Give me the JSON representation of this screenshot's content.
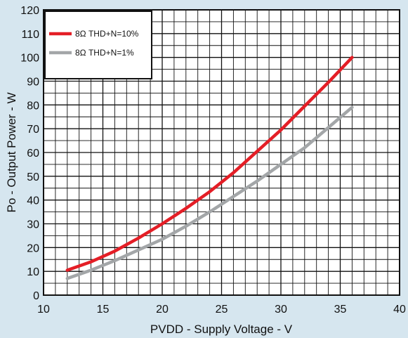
{
  "chart_data": {
    "type": "line",
    "xlabel": "PVDD - Supply Voltage - V",
    "ylabel": "Po - Output Power - W",
    "xlim": [
      10,
      40
    ],
    "ylim": [
      0,
      120
    ],
    "x_major_ticks": [
      10,
      15,
      20,
      25,
      30,
      35,
      40
    ],
    "y_major_ticks": [
      0,
      10,
      20,
      30,
      40,
      50,
      60,
      70,
      80,
      90,
      100,
      110,
      120
    ],
    "grid": true,
    "legend_position": "top-left",
    "series": [
      {
        "name": "8Ω THD+N=10%",
        "color": "#e41e26",
        "x": [
          12,
          14,
          16,
          18,
          20,
          22,
          24,
          26,
          28,
          30,
          32,
          34,
          36
        ],
        "y": [
          10.5,
          14,
          18.5,
          24,
          30,
          36.5,
          43.5,
          51.5,
          60.5,
          69.5,
          79.5,
          89.5,
          100
        ]
      },
      {
        "name": "8Ω THD+N=1%",
        "color": "#a3a6a8",
        "x": [
          12,
          14,
          16,
          18,
          20,
          22,
          24,
          26,
          28,
          30,
          32,
          34,
          36
        ],
        "y": [
          7,
          10.5,
          14.5,
          19,
          23.5,
          29,
          35,
          41.5,
          48,
          55,
          62,
          70.5,
          79
        ]
      }
    ]
  }
}
